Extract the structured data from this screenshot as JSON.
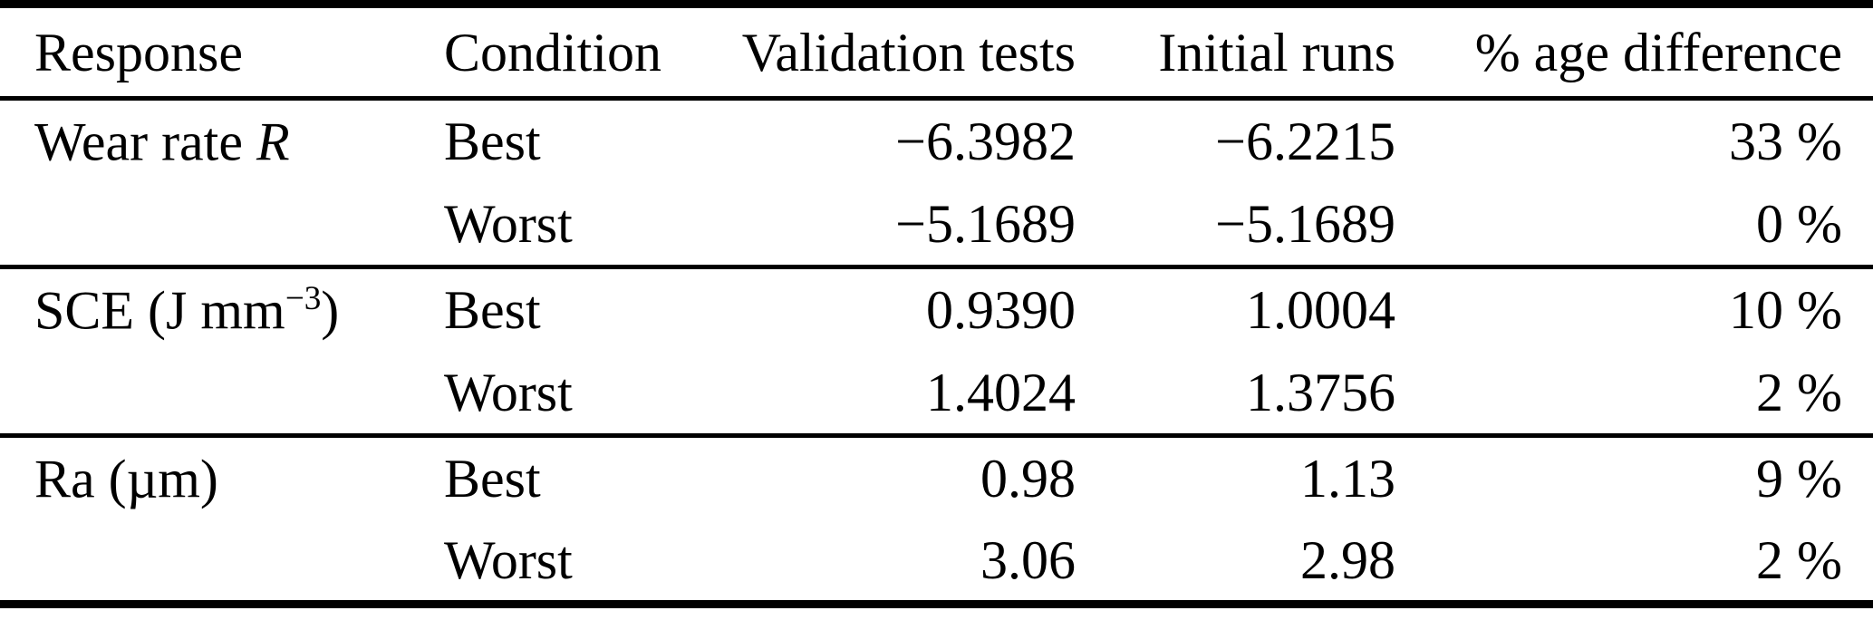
{
  "table": {
    "headers": {
      "response": "Response",
      "condition": "Condition",
      "validation": "Validation tests",
      "initial": "Initial runs",
      "diff": "% age difference"
    },
    "groups": [
      {
        "response": {
          "pre": "Wear rate ",
          "italic": "R",
          "sup": "",
          "post": ""
        },
        "rows": [
          {
            "condition": "Best",
            "validation": "−6.3982",
            "initial": "−6.2215",
            "diff": "33 %"
          },
          {
            "condition": "Worst",
            "validation": "−5.1689",
            "initial": "−5.1689",
            "diff": "0 %"
          }
        ]
      },
      {
        "response": {
          "pre": "SCE (J mm",
          "italic": "",
          "sup": "−3",
          "post": ")"
        },
        "rows": [
          {
            "condition": "Best",
            "validation": "0.9390",
            "initial": "1.0004",
            "diff": "10 %"
          },
          {
            "condition": "Worst",
            "validation": "1.4024",
            "initial": "1.3756",
            "diff": "2 %"
          }
        ]
      },
      {
        "response": {
          "pre": "Ra (µm)",
          "italic": "",
          "sup": "",
          "post": ""
        },
        "rows": [
          {
            "condition": "Best",
            "validation": "0.98",
            "initial": "1.13",
            "diff": "9 %"
          },
          {
            "condition": "Worst",
            "validation": "3.06",
            "initial": "2.98",
            "diff": "2 %"
          }
        ]
      }
    ],
    "colors": {
      "text": "#000000",
      "background": "#ffffff",
      "rule": "#000000"
    }
  }
}
